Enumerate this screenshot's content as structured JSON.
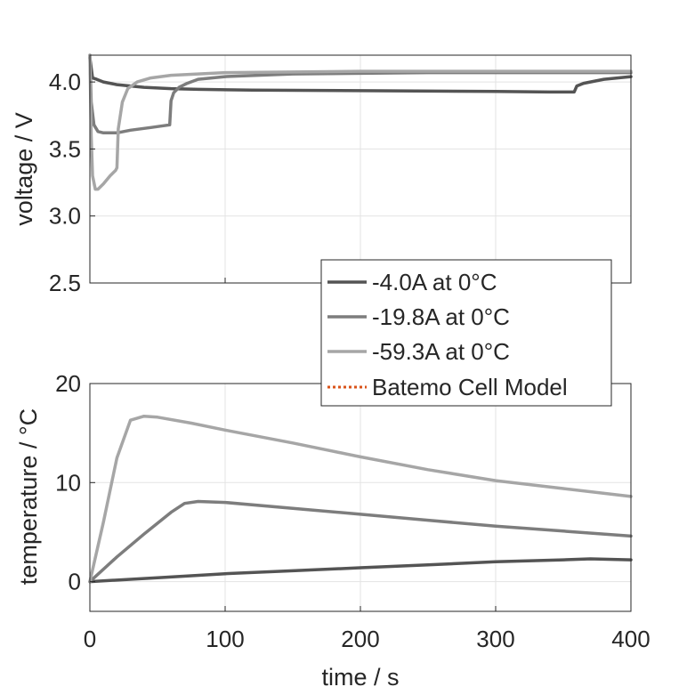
{
  "chart_data": [
    {
      "type": "line",
      "title": "",
      "xlabel": "",
      "ylabel": "voltage / V",
      "xlim": [
        0,
        400
      ],
      "ylim": [
        2.5,
        4.2
      ],
      "yticks": [
        "2.5",
        "3.0",
        "3.5",
        "4.0"
      ],
      "grid": true,
      "series": [
        {
          "name": "-4.0A at 0°C",
          "color": "#545454",
          "x": [
            0,
            2,
            5,
            10,
            20,
            40,
            60,
            80,
            120,
            200,
            300,
            340,
            358,
            360,
            365,
            380,
            400
          ],
          "y": [
            4.18,
            4.03,
            4.02,
            4.0,
            3.98,
            3.96,
            3.95,
            3.945,
            3.94,
            3.935,
            3.93,
            3.925,
            3.925,
            3.97,
            3.99,
            4.02,
            4.04
          ]
        },
        {
          "name": "-19.8A at 0°C",
          "color": "#7d7d7d",
          "x": [
            0,
            1,
            3,
            6,
            10,
            20,
            30,
            45,
            59,
            60,
            62,
            66,
            72,
            80,
            100,
            150,
            250,
            400
          ],
          "y": [
            4.2,
            3.85,
            3.68,
            3.63,
            3.62,
            3.62,
            3.64,
            3.66,
            3.68,
            3.86,
            3.92,
            3.96,
            3.99,
            4.02,
            4.04,
            4.06,
            4.07,
            4.07
          ]
        },
        {
          "name": "-59.3A at 0°C",
          "color": "#a6a6a6",
          "x": [
            0,
            1,
            2,
            4,
            6,
            10,
            15,
            19,
            20,
            21,
            24,
            28,
            35,
            45,
            60,
            100,
            200,
            400
          ],
          "y": [
            4.2,
            3.6,
            3.3,
            3.2,
            3.2,
            3.24,
            3.3,
            3.34,
            3.36,
            3.65,
            3.85,
            3.95,
            4.0,
            4.03,
            4.05,
            4.07,
            4.08,
            4.08
          ]
        }
      ]
    },
    {
      "type": "line",
      "title": "",
      "xlabel": "time / s",
      "ylabel": "temperature / °C",
      "xlim": [
        0,
        400
      ],
      "ylim": [
        -3,
        20
      ],
      "xticks": [
        "0",
        "100",
        "200",
        "300",
        "400"
      ],
      "yticks": [
        "0",
        "10",
        "20"
      ],
      "grid": true,
      "series": [
        {
          "name": "-4.0A at 0°C",
          "color": "#545454",
          "x": [
            0,
            50,
            100,
            150,
            200,
            250,
            300,
            350,
            370,
            400
          ],
          "y": [
            0,
            0.4,
            0.8,
            1.1,
            1.4,
            1.7,
            2.0,
            2.2,
            2.3,
            2.2
          ]
        },
        {
          "name": "-19.8A at 0°C",
          "color": "#7d7d7d",
          "x": [
            0,
            20,
            40,
            60,
            70,
            80,
            100,
            150,
            200,
            250,
            300,
            350,
            400
          ],
          "y": [
            0,
            2.5,
            4.8,
            7.0,
            7.9,
            8.1,
            8.0,
            7.4,
            6.8,
            6.2,
            5.6,
            5.1,
            4.6
          ]
        },
        {
          "name": "-59.3A at 0°C",
          "color": "#a6a6a6",
          "x": [
            0,
            10,
            20,
            30,
            40,
            50,
            75,
            100,
            150,
            200,
            250,
            300,
            350,
            400
          ],
          "y": [
            0,
            6.0,
            12.5,
            16.3,
            16.7,
            16.6,
            16.0,
            15.3,
            14.0,
            12.6,
            11.3,
            10.2,
            9.4,
            8.6
          ]
        },
        {
          "name": "Batemo Cell Model",
          "color": "#d95319",
          "style": "dotted",
          "x": [],
          "y": []
        }
      ]
    }
  ],
  "legend": {
    "placement": "center-right",
    "items": [
      {
        "label": "-4.0A at 0°C",
        "color": "#545454",
        "style": "solid"
      },
      {
        "label": "-19.8A at 0°C",
        "color": "#7d7d7d",
        "style": "solid"
      },
      {
        "label": "-59.3A at 0°C",
        "color": "#a6a6a6",
        "style": "solid"
      },
      {
        "label": "Batemo Cell Model",
        "color": "#d95319",
        "style": "dotted"
      }
    ]
  }
}
